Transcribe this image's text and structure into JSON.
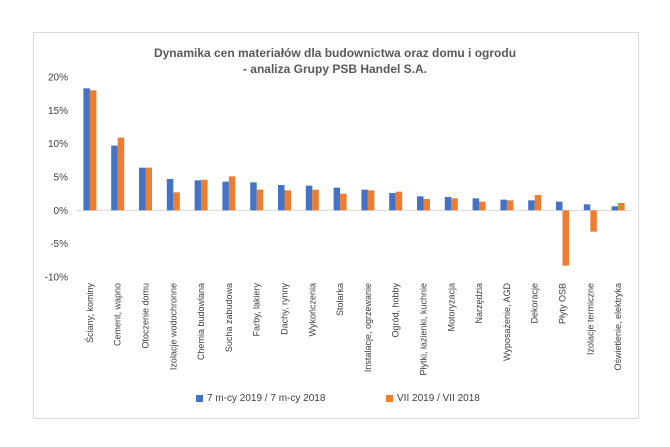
{
  "chart_data": {
    "type": "bar",
    "title_lines": [
      "Dynamika cen materiałów dla budownictwa oraz domu i ogrodu",
      "- analiza Grupy PSB Handel S.A."
    ],
    "categories": [
      "Ściany, kominy",
      "Cement, wapno",
      "Otoczenie domu",
      "Izolacje wodochronne",
      "Chemia budowlana",
      "Sucha zabudowa",
      "Farby, lakiery",
      "Dachy, rynny",
      "Wykończenia",
      "Stolarka",
      "Instalacje, ogrzewanie",
      "Ogród, hobby",
      "Płytki, łazienki, kuchnie",
      "Motoryzacja",
      "Narzędzia",
      "Wyposażenie, AGD",
      "Dekoracje",
      "Płyty OSB",
      "Izolacje termiczne",
      "Oświetlenie, elektryka"
    ],
    "series": [
      {
        "name": "7 m-cy 2019 / 7 m-cy 2018",
        "color": "#4472c4",
        "values": [
          18.3,
          9.7,
          6.4,
          4.7,
          4.5,
          4.3,
          4.2,
          3.8,
          3.7,
          3.4,
          3.1,
          2.6,
          2.1,
          2.0,
          1.8,
          1.6,
          1.5,
          1.3,
          0.9,
          0.6
        ]
      },
      {
        "name": "VII 2019 / VII 2018",
        "color": "#ed7d31",
        "values": [
          18.0,
          10.9,
          6.4,
          2.7,
          4.6,
          5.1,
          3.1,
          3.0,
          3.1,
          2.5,
          3.0,
          2.8,
          1.7,
          1.8,
          1.3,
          1.5,
          2.3,
          -8.3,
          -3.2,
          1.1
        ]
      }
    ],
    "y_ticks": [
      20,
      15,
      10,
      5,
      0,
      -5,
      -10
    ],
    "ylim": [
      -10,
      20
    ],
    "y_unit": "%",
    "grid": false,
    "legend_position": "bottom"
  }
}
